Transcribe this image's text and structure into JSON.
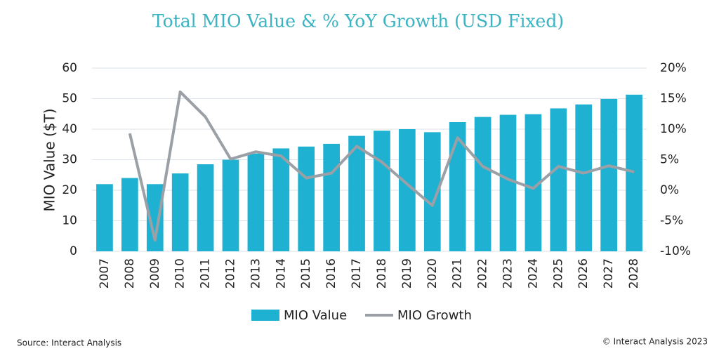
{
  "chart_data": {
    "type": "bar-line",
    "title": "Total MIO Value & % YoY Growth (USD Fixed)",
    "y_label": "MIO Value ($T)",
    "categories": [
      "2007",
      "2008",
      "2009",
      "2010",
      "2011",
      "2012",
      "2013",
      "2014",
      "2015",
      "2016",
      "2017",
      "2018",
      "2019",
      "2020",
      "2021",
      "2022",
      "2023",
      "2024",
      "2025",
      "2026",
      "2027",
      "2028"
    ],
    "series": [
      {
        "name": "MIO Value",
        "type": "bar",
        "color": "#1fb1d1",
        "values": [
          22,
          24,
          22,
          25.5,
          28.5,
          30,
          32,
          33.7,
          34.3,
          35.2,
          37.8,
          39.5,
          40,
          39,
          42.3,
          44,
          44.7,
          44.9,
          46.8,
          48.1,
          49.9,
          51.3
        ]
      },
      {
        "name": "MIO Growth",
        "type": "line",
        "axis": "y2",
        "color": "#9aa0a6",
        "values": [
          null,
          9.3,
          -8.2,
          16.1,
          12.0,
          5.1,
          6.3,
          5.6,
          2.0,
          2.8,
          7.2,
          4.6,
          1.0,
          -2.5,
          8.6,
          3.9,
          1.8,
          0.3,
          3.9,
          2.8,
          4.0,
          3.0
        ]
      }
    ],
    "ylim": [
      0,
      60
    ],
    "yticks": [
      0,
      10,
      20,
      30,
      40,
      50,
      60
    ],
    "y2lim": [
      -10,
      20
    ],
    "y2ticks": [
      {
        "value": -10,
        "label": "-10%"
      },
      {
        "value": -5,
        "label": "-5%"
      },
      {
        "value": 0,
        "label": "0%"
      },
      {
        "value": 5,
        "label": "5%"
      },
      {
        "value": 10,
        "label": "10%"
      },
      {
        "value": 15,
        "label": "15%"
      },
      {
        "value": 20,
        "label": "20%"
      }
    ],
    "grid": true,
    "source": "Source: Interact Analysis",
    "copyright": "© Interact Analysis 2023"
  }
}
